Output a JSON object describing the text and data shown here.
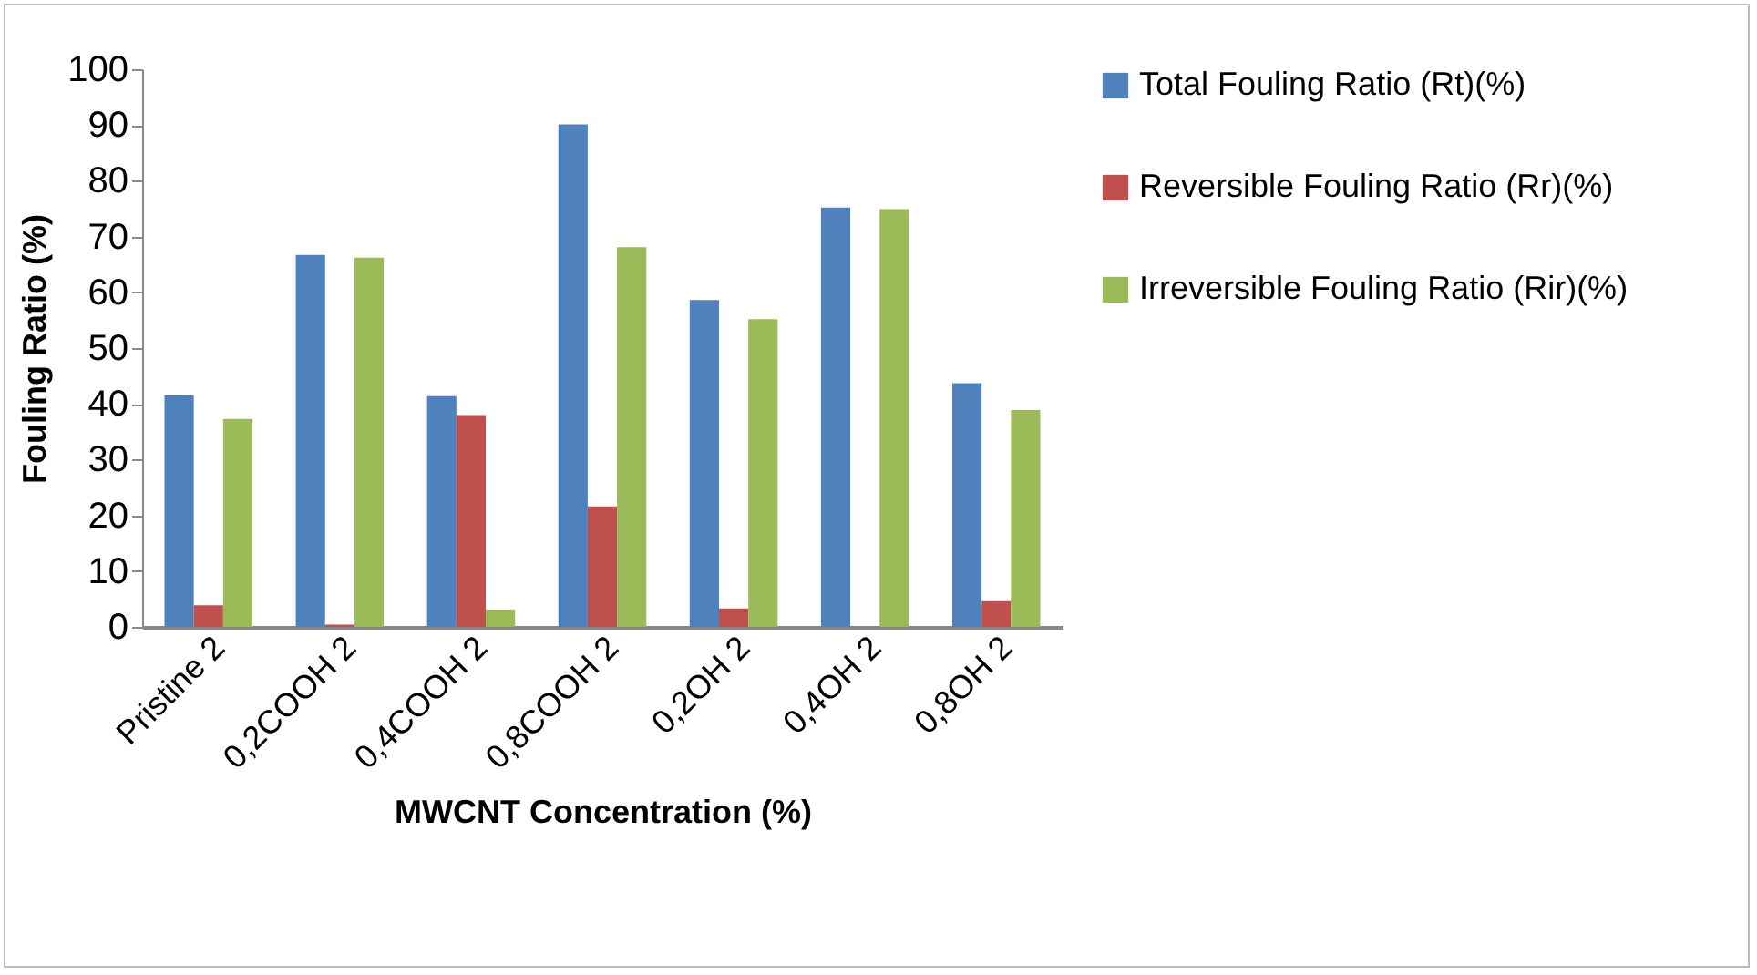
{
  "chart_data": {
    "type": "bar",
    "xlabel": "MWCNT Concentration (%)",
    "ylabel": "Fouling Ratio (%)",
    "categories": [
      "Pristine 2",
      "0,2COOH 2",
      "0,4COOH 2",
      "0,8COOH 2",
      "0,2OH 2",
      "0,4OH 2",
      "0,8OH 2"
    ],
    "series": [
      {
        "name": "Total Fouling Ratio (Rt)(%)",
        "color": "#4f81bd",
        "values": [
          41.5,
          66.7,
          41.4,
          90.1,
          58.6,
          75.2,
          43.7
        ]
      },
      {
        "name": "Reversible Fouling Ratio (Rr)(%)",
        "color": "#c0504d",
        "values": [
          3.9,
          0.4,
          38.0,
          21.6,
          3.3,
          0,
          4.6
        ]
      },
      {
        "name": "Irreversible Fouling Ratio (Rir)(%)",
        "color": "#9bbb59",
        "values": [
          37.3,
          66.2,
          3.1,
          68.1,
          55.2,
          74.9,
          38.9
        ]
      }
    ],
    "ylim": [
      0,
      100
    ],
    "yticks": [
      0,
      10,
      20,
      30,
      40,
      50,
      60,
      70,
      80,
      90,
      100
    ],
    "grid": false,
    "legend": "right"
  }
}
